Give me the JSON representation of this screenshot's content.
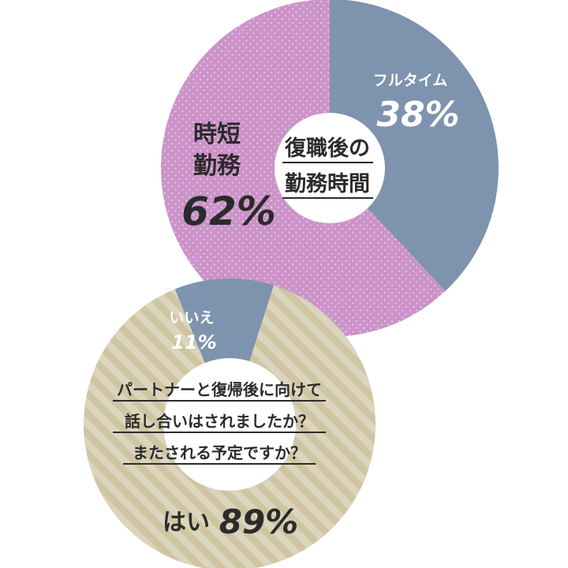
{
  "chart_data": [
    {
      "type": "pie",
      "style": "donut",
      "title": "",
      "center_text": [
        "復職後の",
        "勤務時間"
      ],
      "slices": [
        {
          "label": "フルタイム",
          "value": 38,
          "value_text": "38%",
          "color": "#7e93ad"
        },
        {
          "label": "時短勤務",
          "label_lines": [
            "時短",
            "勤務"
          ],
          "value": 62,
          "value_text": "62%",
          "color": "#cc93c8"
        }
      ]
    },
    {
      "type": "pie",
      "style": "donut",
      "title": "",
      "center_text": [
        "パートナーと復帰後に向けて",
        "話し合いはされましたか？",
        "またされる予定ですか？"
      ],
      "slices": [
        {
          "label": "いいえ",
          "value": 11,
          "value_text": "11%",
          "color": "#7e93ad"
        },
        {
          "label": "はい",
          "value": 89,
          "value_text": "89%",
          "color": "#cfc5a3"
        }
      ]
    }
  ]
}
